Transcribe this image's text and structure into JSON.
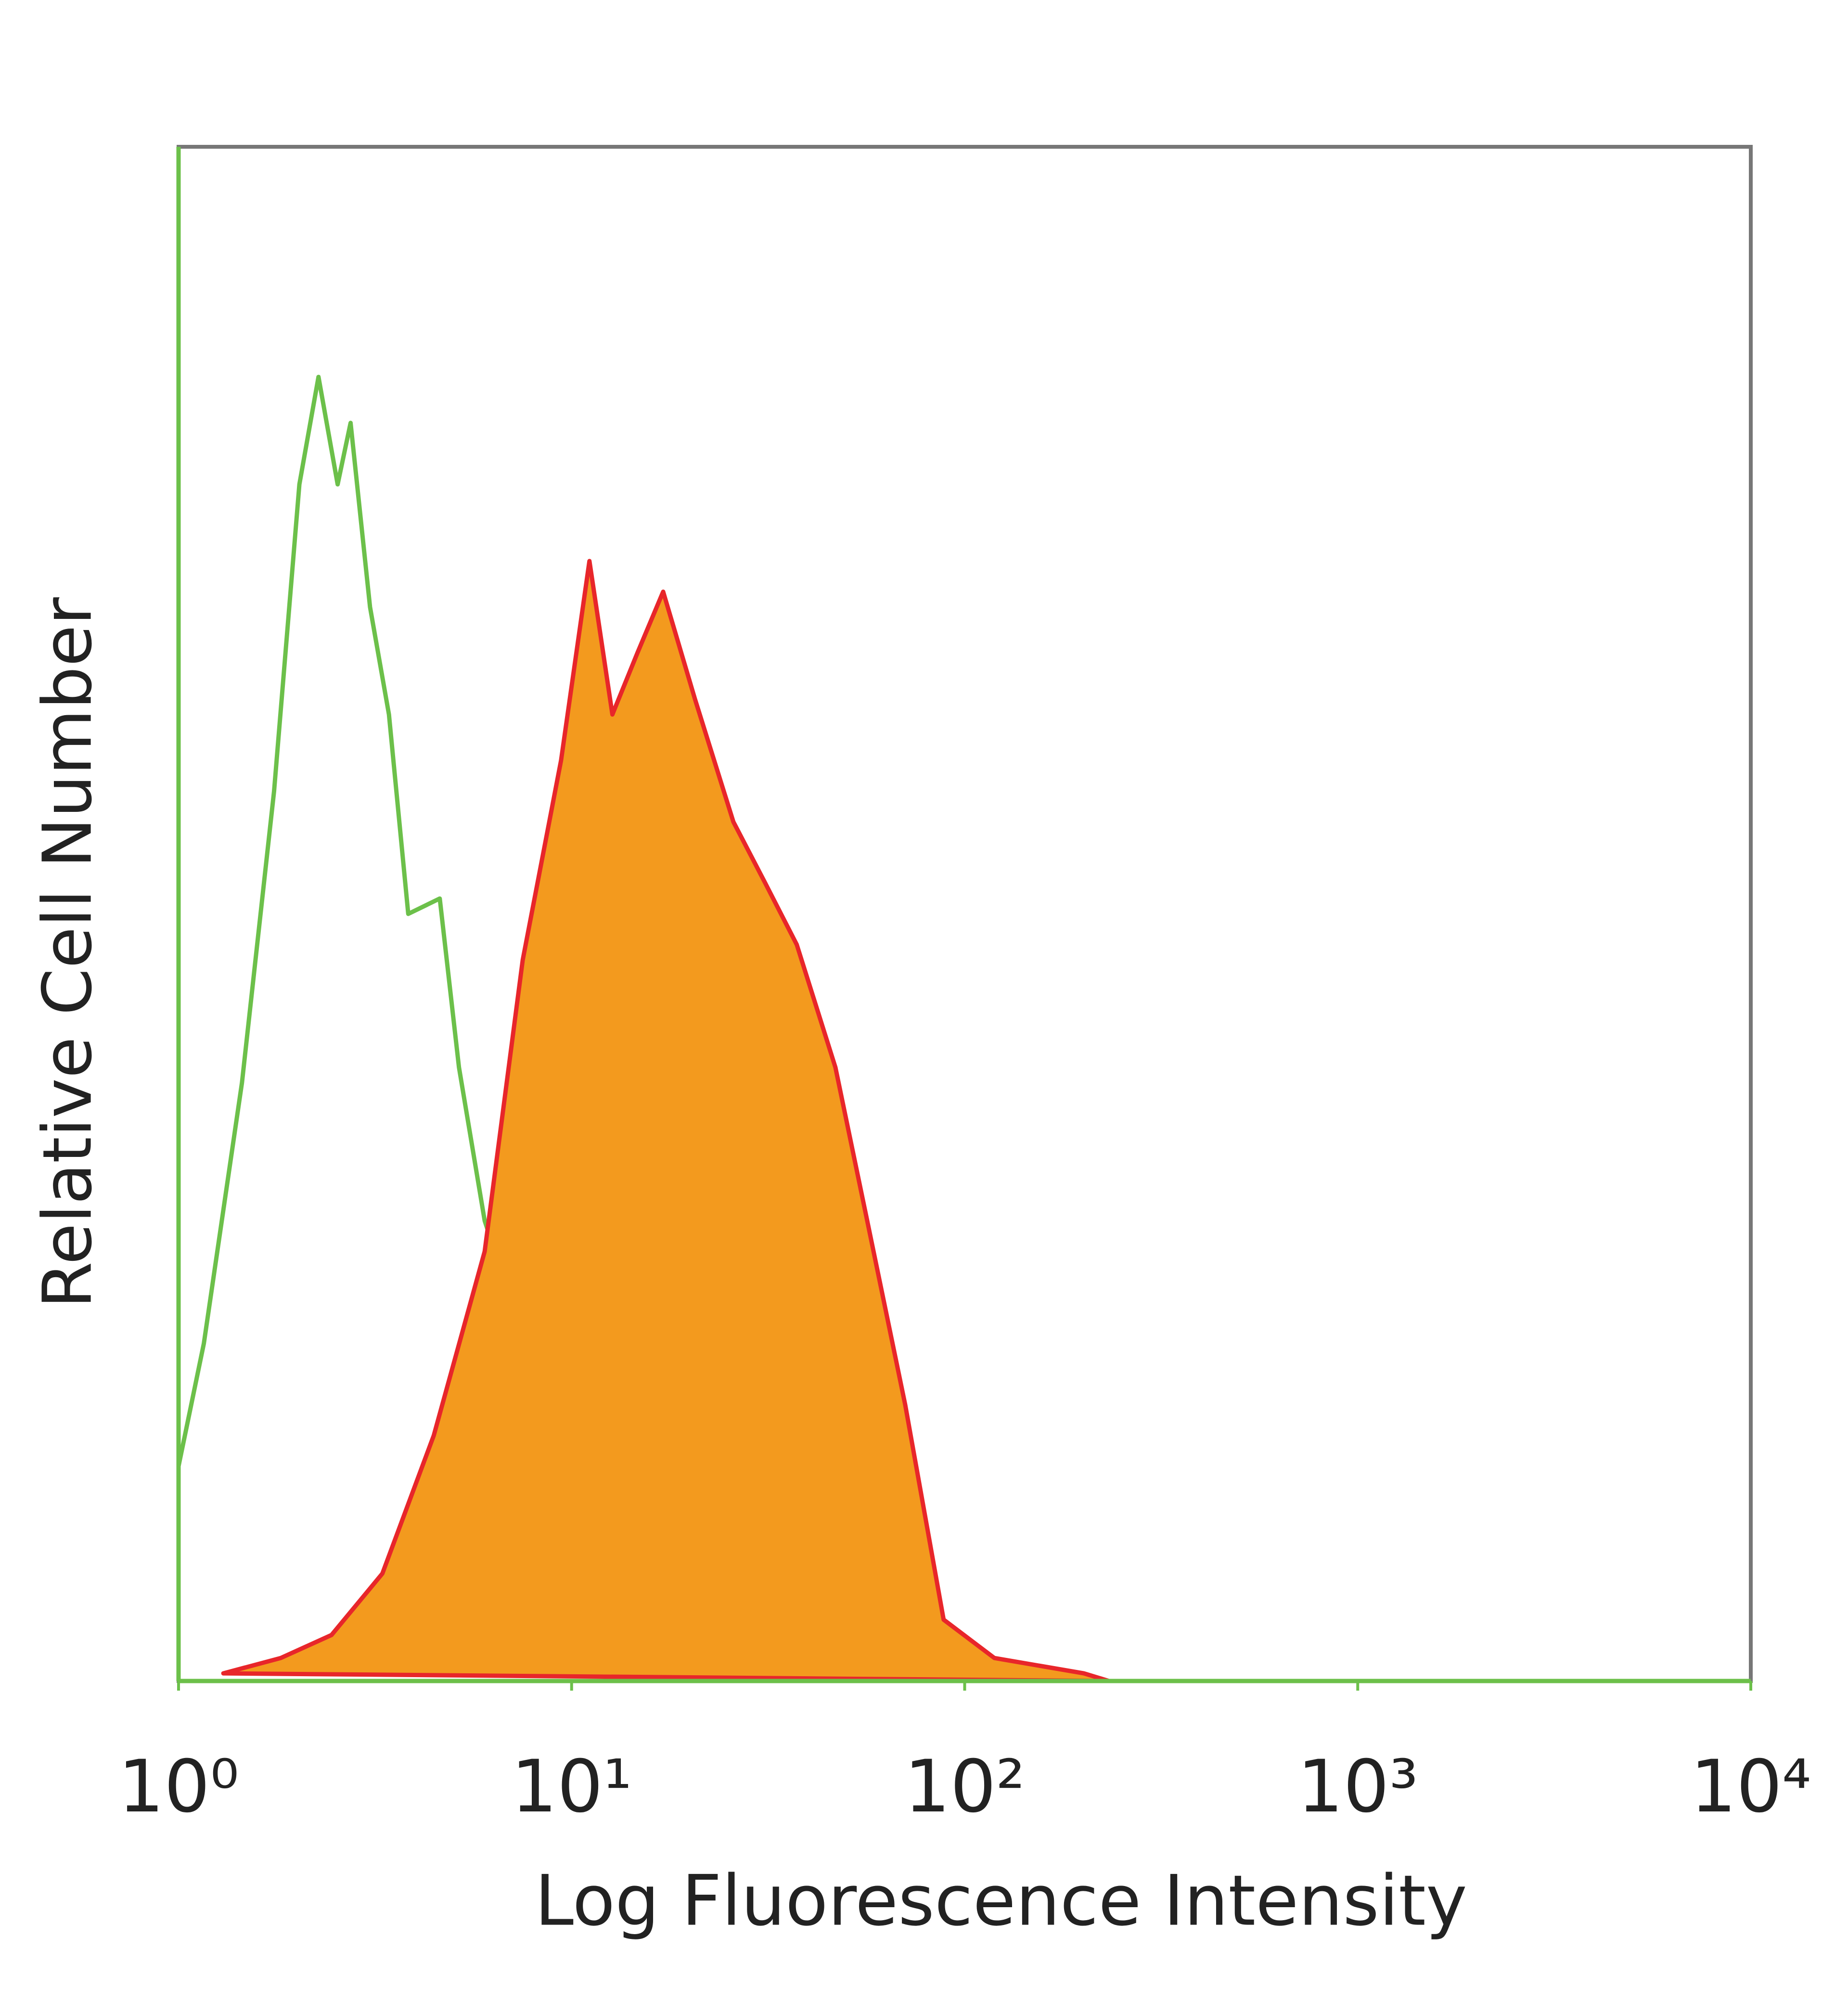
{
  "chart_data": {
    "type": "histogram-overlay",
    "xlabel": "Log Fluorescence Intensity",
    "ylabel": "Relative Cell Number",
    "xscale": "log",
    "xlim": [
      1,
      10000
    ],
    "xticks": [
      {
        "value": 1,
        "label": "10⁰"
      },
      {
        "value": 10,
        "label": "10¹"
      },
      {
        "value": 100,
        "label": "10²"
      },
      {
        "value": 1000,
        "label": "10³"
      },
      {
        "value": 10000,
        "label": "10⁴"
      }
    ],
    "ylim": [
      0,
      100
    ],
    "series": [
      {
        "color": "#6cc04a",
        "filled": false,
        "x": [
          1,
          1.16,
          1.45,
          1.75,
          2.03,
          2.27,
          2.54,
          2.74,
          3.07,
          3.43,
          3.84,
          4.62,
          5.17,
          6.01,
          6.97,
          8.73,
          10.9,
          13.7,
          17.1,
          23.0,
          31.0
        ],
        "values": [
          14,
          22,
          39,
          58,
          78,
          85,
          78,
          82,
          70,
          63,
          50,
          51,
          40,
          30,
          25,
          16,
          8,
          3,
          1.5,
          0.2,
          0
        ]
      },
      {
        "color": "#e8262a",
        "fill": "#f39a1e",
        "filled": true,
        "x": [
          1.3,
          1.82,
          2.45,
          3.3,
          4.46,
          6.01,
          7.51,
          9.4,
          11.1,
          12.7,
          14.7,
          17.1,
          20.6,
          25.8,
          31.1,
          37.4,
          46.9,
          56.5,
          70.6,
          88.4,
          119,
          201,
          233
        ],
        "values": [
          0.5,
          1.5,
          3,
          7,
          16,
          28,
          47,
          60,
          73,
          63,
          67,
          71,
          64,
          56,
          52,
          48,
          40,
          30,
          18,
          4,
          1.5,
          0.5,
          0
        ]
      }
    ]
  }
}
